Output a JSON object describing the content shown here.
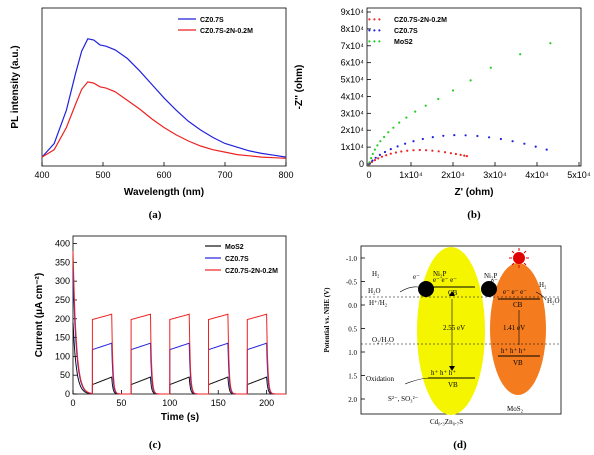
{
  "chart_data": [
    {
      "type": "line",
      "panel_label": "(a)",
      "xlabel": "Wavelength (nm)",
      "ylabel": "PL intensity (a.u.)",
      "xlim": [
        400,
        800
      ],
      "xticks": [
        "400",
        "500",
        "600",
        "700",
        "800"
      ],
      "legend_position": "top-right",
      "series": [
        {
          "name": "CZ0.7S",
          "color": "#2222dd",
          "x": [
            400,
            420,
            440,
            455,
            465,
            475,
            485,
            495,
            505,
            520,
            540,
            560,
            580,
            600,
            620,
            640,
            660,
            680,
            700,
            720,
            740,
            760,
            780,
            800
          ],
          "y": [
            0.04,
            0.15,
            0.42,
            0.72,
            0.9,
            1.0,
            0.99,
            0.95,
            0.94,
            0.91,
            0.84,
            0.74,
            0.63,
            0.52,
            0.42,
            0.33,
            0.26,
            0.2,
            0.15,
            0.12,
            0.09,
            0.07,
            0.055,
            0.04
          ]
        },
        {
          "name": "CZ0.7S-2N-0.2M",
          "color": "#ee2222",
          "x": [
            400,
            420,
            440,
            455,
            465,
            475,
            485,
            495,
            505,
            520,
            540,
            560,
            580,
            600,
            620,
            640,
            660,
            680,
            700,
            720,
            740,
            760,
            780,
            800
          ],
          "y": [
            0.04,
            0.1,
            0.28,
            0.47,
            0.59,
            0.65,
            0.64,
            0.61,
            0.6,
            0.57,
            0.5,
            0.43,
            0.35,
            0.28,
            0.22,
            0.17,
            0.13,
            0.1,
            0.08,
            0.06,
            0.05,
            0.04,
            0.035,
            0.03
          ]
        }
      ]
    },
    {
      "type": "scatter",
      "panel_label": "(b)",
      "xlabel": "Z' (ohm)",
      "ylabel": "-Z'' (ohm)",
      "xlim": [
        0,
        50000
      ],
      "ylim": [
        0,
        90000
      ],
      "xticks": [
        "0",
        "1x10⁴",
        "2x10⁴",
        "3x10⁴",
        "4x10⁴",
        "5x10⁴"
      ],
      "yticks": [
        "0",
        "1x10⁴",
        "2x10⁴",
        "3x10⁴",
        "4x10⁴",
        "5x10⁴",
        "6x10⁴",
        "7x10⁴",
        "8x10⁴",
        "9x10⁴"
      ],
      "legend_position": "top-left",
      "series": [
        {
          "name": "CZ0.7S-2N-0.2M",
          "color": "#ee2222",
          "x": [
            200,
            700,
            1400,
            2200,
            3100,
            4100,
            5200,
            6400,
            7700,
            9100,
            10600,
            12100,
            13600,
            15100,
            16600,
            18100,
            19500,
            20700,
            21800,
            22700,
            23300
          ],
          "y": [
            300,
            1200,
            2300,
            3300,
            4300,
            5200,
            6100,
            6800,
            7400,
            7900,
            8200,
            8300,
            8200,
            7900,
            7500,
            7000,
            6400,
            5900,
            5400,
            5000,
            4700
          ]
        },
        {
          "name": "CZ0.7S",
          "color": "#2222dd",
          "x": [
            200,
            800,
            1600,
            2600,
            3800,
            5200,
            6800,
            8600,
            10600,
            12800,
            15200,
            17700,
            20300,
            23000,
            25800,
            28600,
            31400,
            34200,
            37000,
            39700,
            42300
          ],
          "y": [
            500,
            2000,
            3700,
            5400,
            7100,
            8800,
            10400,
            12000,
            13500,
            14800,
            15900,
            16700,
            17100,
            17000,
            16600,
            15800,
            14800,
            13500,
            12000,
            10300,
            8500
          ]
        },
        {
          "name": "MoS2",
          "color": "#22cc22",
          "x": [
            150,
            500,
            900,
            1400,
            2000,
            2700,
            3600,
            4600,
            5800,
            7200,
            8900,
            11000,
            13500,
            16500,
            20000,
            24200,
            29000,
            36000,
            43200
          ],
          "y": [
            1000,
            3500,
            6000,
            8500,
            11000,
            13500,
            16000,
            18800,
            21500,
            24500,
            27500,
            31000,
            34500,
            38500,
            43500,
            49500,
            57000,
            65000,
            71500
          ]
        }
      ]
    },
    {
      "type": "line",
      "panel_label": "(c)",
      "xlabel": "Time (s)",
      "ylabel": "Current (μA cm⁻²)",
      "xlim": [
        0,
        220
      ],
      "ylim": [
        0,
        420
      ],
      "xticks": [
        "0",
        "50",
        "100",
        "150",
        "200"
      ],
      "yticks": [
        "0",
        "50",
        "100",
        "150",
        "200",
        "250",
        "300",
        "350",
        "400"
      ],
      "legend_position": "top-right",
      "light_on_times": [
        20,
        60,
        100,
        140,
        180
      ],
      "cycle_on_duration": 20,
      "series": [
        {
          "name": "MoS2",
          "color": "#111111",
          "on_start": 25,
          "on_end": 45,
          "initial_spike": 190
        },
        {
          "name": "CZ0.7S",
          "color": "#2222dd",
          "on_start": 118,
          "on_end": 135,
          "initial_spike": 330
        },
        {
          "name": "CZ0.7S-2N-0.2M",
          "color": "#ee2222",
          "on_start": 198,
          "on_end": 212,
          "initial_spike": 380
        }
      ]
    }
  ],
  "diagram": {
    "panel_label": "(d)",
    "ylabel": "Potential vs. NHE (V)",
    "yticks": [
      "-1.0",
      "-0.5",
      "0.0",
      "0.5",
      "1.0",
      "1.5",
      "2.0"
    ],
    "h_plus_h2": "H⁺/H₂",
    "o2_h2o": "O₂/H₂O",
    "h2": "H₂",
    "h2o": "H₂O",
    "ni2p_left": "Ni₂P",
    "ni2p_right": "Ni₂P",
    "electron_label": "e⁻",
    "electrons": "e⁻ e⁻ e⁻",
    "holes": "h⁺ h⁺ h⁺",
    "holes_right": "h⁺ h⁺ h⁺",
    "cb": "CB",
    "vb": "VB",
    "gap_left": "2.55 eV",
    "gap_right": "1.41 eV",
    "oxidation": "Oxidation",
    "sacrificial": "S²⁻, SO₃²⁻",
    "material_left": "Cd₀.₃Zn₀.₇S",
    "material_right": "MoS₂",
    "color_left": "#f5f500",
    "color_right": "#f47c1e"
  }
}
